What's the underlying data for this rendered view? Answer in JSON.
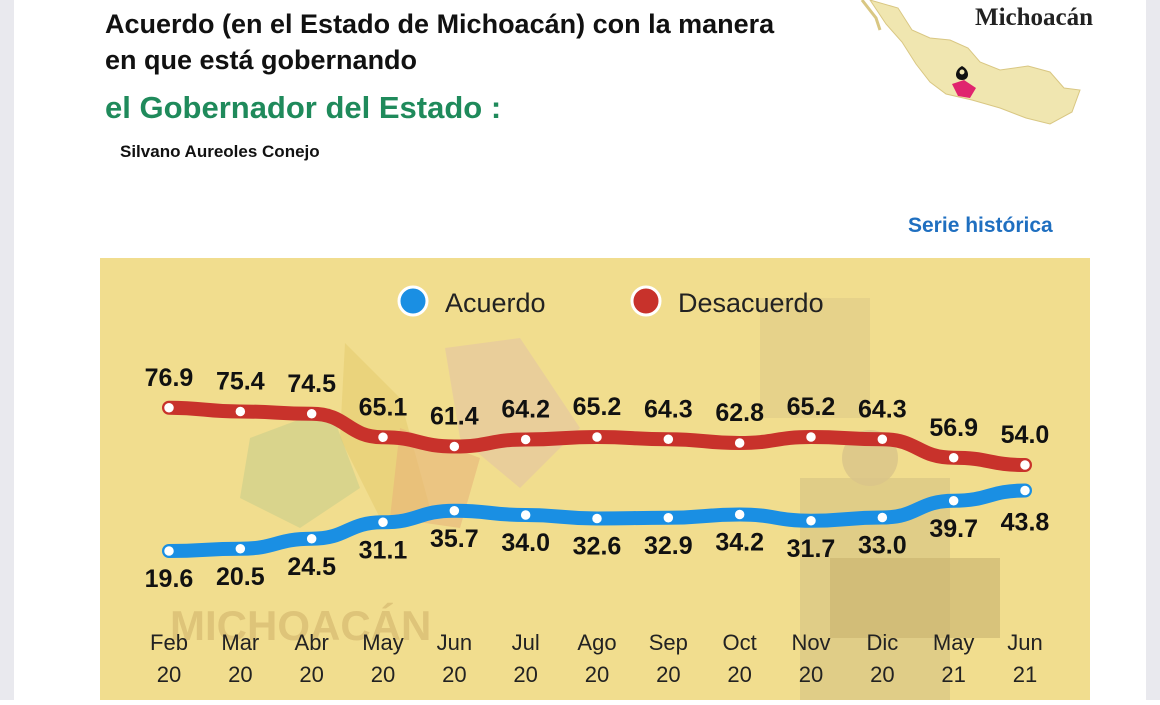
{
  "header": {
    "title": "Acuerdo (en el Estado de Michoacán) con la manera en que está gobernando",
    "title_accent": "el Gobernador del Estado :",
    "subtitle": "Silvano Aureoles Conejo",
    "map_label": "Michoacán",
    "series_label": "Serie histórica"
  },
  "watermark": "MICHOACÁN",
  "colors": {
    "acuerdo": "#1a8fe3",
    "desacuerdo": "#c8322b",
    "title_accent": "#1f8a5b",
    "series_label": "#1f6fc0",
    "plot_background": "#f1dd8e"
  },
  "chart_data": {
    "type": "line",
    "categories": [
      [
        "Feb",
        "20"
      ],
      [
        "Mar",
        "20"
      ],
      [
        "Abr",
        "20"
      ],
      [
        "May",
        "20"
      ],
      [
        "Jun",
        "20"
      ],
      [
        "Jul",
        "20"
      ],
      [
        "Ago",
        "20"
      ],
      [
        "Sep",
        "20"
      ],
      [
        "Oct",
        "20"
      ],
      [
        "Nov",
        "20"
      ],
      [
        "Dic",
        "20"
      ],
      [
        "May",
        "21"
      ],
      [
        "Jun",
        "21"
      ]
    ],
    "series": [
      {
        "name": "Acuerdo",
        "color": "#1a8fe3",
        "values": [
          19.6,
          20.5,
          24.5,
          31.1,
          35.7,
          34.0,
          32.6,
          32.9,
          34.2,
          31.7,
          33.0,
          39.7,
          43.8
        ],
        "labels": [
          "19.6",
          "20.5",
          "24.5",
          "31.1",
          "35.7",
          "34.0",
          "32.6",
          "32.9",
          "34.2",
          "31.7",
          "33.0",
          "39.7",
          "43.8"
        ]
      },
      {
        "name": "Desacuerdo",
        "color": "#c8322b",
        "values": [
          76.9,
          75.4,
          74.5,
          65.1,
          61.4,
          64.2,
          65.2,
          64.3,
          62.8,
          65.2,
          64.3,
          56.9,
          54.0
        ],
        "labels": [
          "76.9",
          "75.4",
          "74.5",
          "65.1",
          "61.4",
          "64.2",
          "65.2",
          "64.3",
          "62.8",
          "65.2",
          "64.3",
          "56.9",
          "54.0"
        ]
      }
    ],
    "legend": "top-center",
    "grid": false,
    "ylim": [
      10,
      90
    ]
  }
}
